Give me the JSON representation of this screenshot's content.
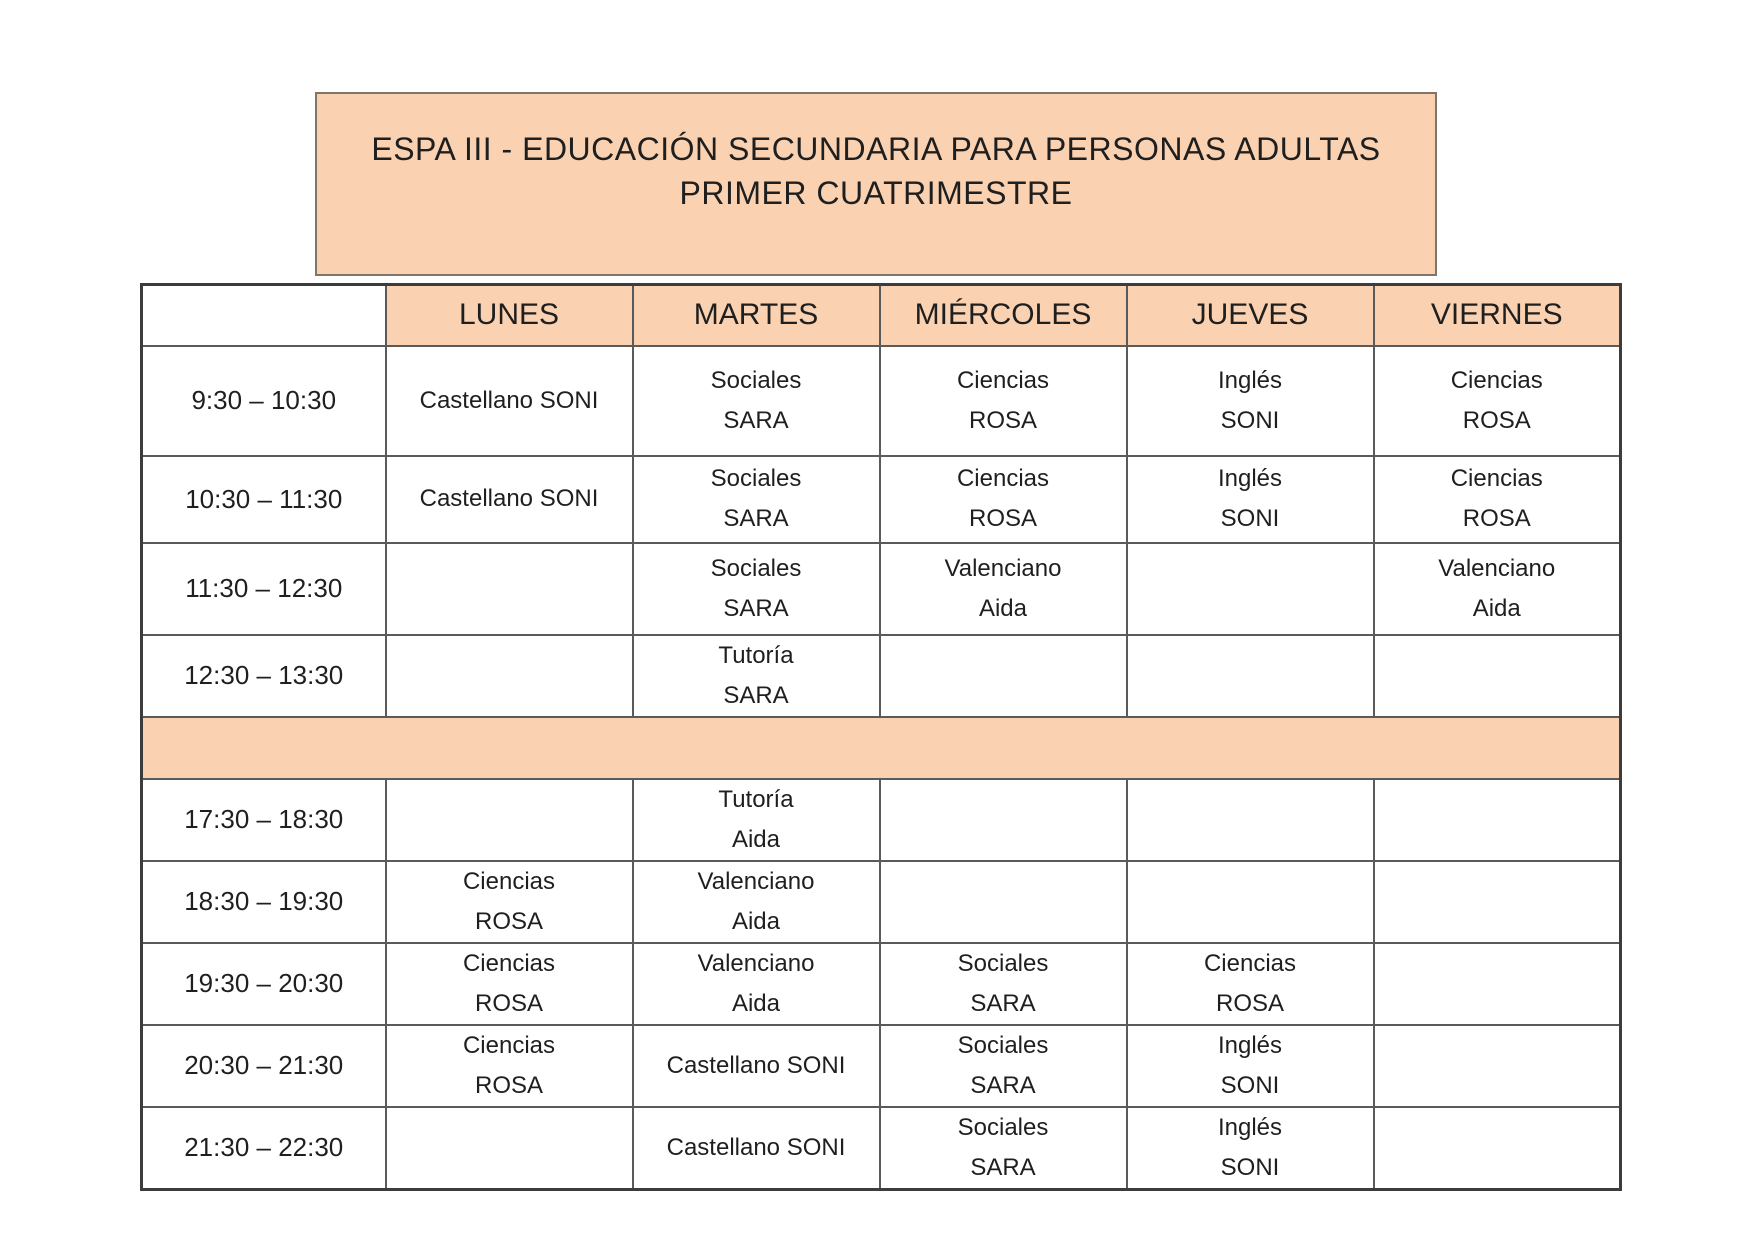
{
  "title": {
    "line1": "ESPA III - EDUCACIÓN SECUNDARIA PARA PERSONAS ADULTAS",
    "line2": "PRIMER CUATRIMESTRE"
  },
  "colors": {
    "peach": "#fad2b2",
    "title_border": "#7d766b",
    "border_outer": "#3c3c3c",
    "border_inner": "#5a5a5a",
    "text": "#1f1f1f"
  },
  "table": {
    "day_headers": [
      "LUNES",
      "MARTES",
      "MIÉRCOLES",
      "JUEVES",
      "VIERNES"
    ],
    "rows": [
      {
        "time": "9:30 – 10:30",
        "cells": [
          [
            "Castellano SONI"
          ],
          [
            "Sociales",
            "SARA"
          ],
          [
            "Ciencias",
            "ROSA"
          ],
          [
            "Inglés",
            "SONI"
          ],
          [
            "Ciencias",
            "ROSA"
          ]
        ]
      },
      {
        "time": "10:30 – 11:30",
        "cells": [
          [
            "Castellano SONI"
          ],
          [
            "Sociales",
            "SARA"
          ],
          [
            "Ciencias",
            "ROSA"
          ],
          [
            "Inglés",
            "SONI"
          ],
          [
            "Ciencias",
            "ROSA"
          ]
        ]
      },
      {
        "time": "11:30 – 12:30",
        "cells": [
          [],
          [
            "Sociales",
            "SARA"
          ],
          [
            "Valenciano",
            "Aida"
          ],
          [],
          [
            "Valenciano",
            "Aida"
          ]
        ]
      },
      {
        "time": "12:30 – 13:30",
        "cells": [
          [],
          [
            "Tutoría",
            "SARA"
          ],
          [],
          [],
          []
        ]
      },
      {
        "type": "separator"
      },
      {
        "time": "17:30 – 18:30",
        "cells": [
          [],
          [
            "Tutoría",
            "Aida"
          ],
          [],
          [],
          []
        ]
      },
      {
        "time": "18:30 – 19:30",
        "cells": [
          [
            "Ciencias",
            "ROSA"
          ],
          [
            "Valenciano",
            "Aida"
          ],
          [],
          [],
          []
        ]
      },
      {
        "time": "19:30 – 20:30",
        "cells": [
          [
            "Ciencias",
            "ROSA"
          ],
          [
            "Valenciano",
            "Aida"
          ],
          [
            "Sociales",
            "SARA"
          ],
          [
            "Ciencias",
            "ROSA"
          ],
          []
        ]
      },
      {
        "time": "20:30 – 21:30",
        "cells": [
          [
            "Ciencias",
            "ROSA"
          ],
          [
            "Castellano SONI"
          ],
          [
            "Sociales",
            "SARA"
          ],
          [
            "Inglés",
            "SONI"
          ],
          []
        ]
      },
      {
        "time": "21:30 – 22:30",
        "cells": [
          [],
          [
            "Castellano SONI"
          ],
          [
            "Sociales",
            "SARA"
          ],
          [
            "Inglés",
            "SONI"
          ],
          []
        ]
      }
    ]
  }
}
